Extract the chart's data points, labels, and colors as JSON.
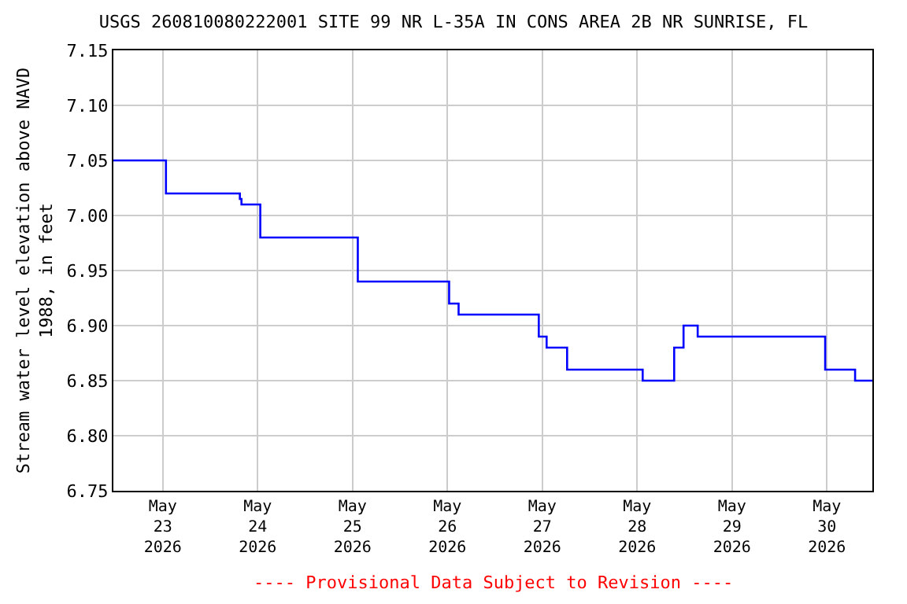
{
  "chart_data": {
    "type": "step",
    "title": "USGS 260810080222001 SITE 99 NR L-35A IN CONS AREA 2B NR SUNRISE, FL",
    "ylabel": "Stream water level elevation above NAVD\n1988, in feet",
    "x": [
      "2026-05-22T11:30",
      "2026-05-23T00:48",
      "2026-05-23T19:30",
      "2026-05-23T19:54",
      "2026-05-24T00:40",
      "2026-05-25T01:20",
      "2026-05-26T00:26",
      "2026-05-26T02:50",
      "2026-05-26T23:07",
      "2026-05-27T01:06",
      "2026-05-27T06:17",
      "2026-05-28T01:24",
      "2026-05-28T09:22",
      "2026-05-28T11:44",
      "2026-05-28T15:19",
      "2026-05-29T23:34",
      "2026-05-30T07:08",
      "2026-05-30T11:30"
    ],
    "series": [
      {
        "color": "#0000ff",
        "values": [
          7.05,
          7.02,
          7.015,
          7.01,
          6.98,
          6.94,
          6.92,
          6.91,
          6.89,
          6.88,
          6.86,
          6.85,
          6.88,
          6.9,
          6.89,
          6.86,
          6.85,
          6.85
        ]
      }
    ],
    "xlim": [
      "2026-05-22T11:30",
      "2026-05-30T11:30"
    ],
    "xticks": [
      {
        "value": "2026-05-23",
        "label": "May\n23\n2026"
      },
      {
        "value": "2026-05-24",
        "label": "May\n24\n2026"
      },
      {
        "value": "2026-05-25",
        "label": "May\n25\n2026"
      },
      {
        "value": "2026-05-26",
        "label": "May\n26\n2026"
      },
      {
        "value": "2026-05-27",
        "label": "May\n27\n2026"
      },
      {
        "value": "2026-05-28",
        "label": "May\n28\n2026"
      },
      {
        "value": "2026-05-29",
        "label": "May\n29\n2026"
      },
      {
        "value": "2026-05-30",
        "label": "May\n30\n2026"
      }
    ],
    "ylim": [
      6.75,
      7.15
    ],
    "yticks": [
      {
        "value": 6.75,
        "label": "6.75"
      },
      {
        "value": 6.8,
        "label": "6.80"
      },
      {
        "value": 6.85,
        "label": "6.85"
      },
      {
        "value": 6.9,
        "label": "6.90"
      },
      {
        "value": 6.95,
        "label": "6.95"
      },
      {
        "value": 7.0,
        "label": "7.00"
      },
      {
        "value": 7.05,
        "label": "7.05"
      },
      {
        "value": 7.1,
        "label": "7.10"
      },
      {
        "value": 7.15,
        "label": "7.15"
      }
    ],
    "grid": true,
    "annotations": [
      "---- Provisional Data Subject to Revision ----"
    ]
  }
}
